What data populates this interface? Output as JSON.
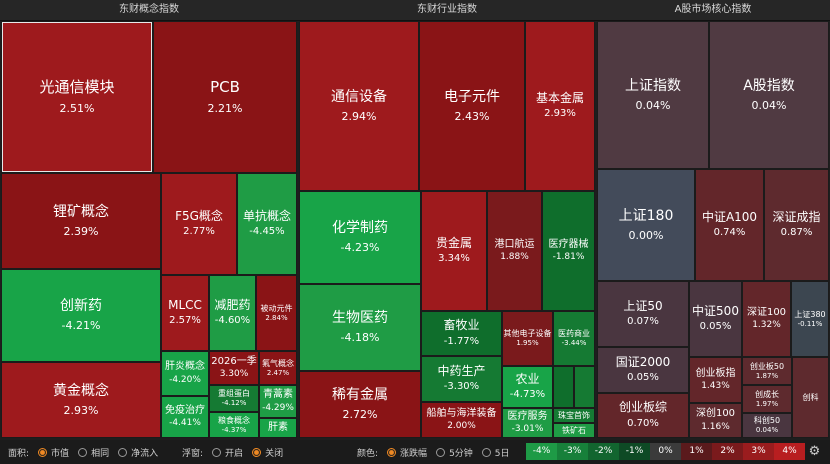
{
  "panels": {
    "concept": {
      "title": "东财概念指数",
      "tiles": [
        {
          "name": "光通信模块",
          "pct": "2.51%"
        },
        {
          "name": "PCB",
          "pct": "2.21%"
        },
        {
          "name": "锂矿概念",
          "pct": "2.39%"
        },
        {
          "name": "F5G概念",
          "pct": "2.77%"
        },
        {
          "name": "单抗概念",
          "pct": "-4.45%"
        },
        {
          "name": "创新药",
          "pct": "-4.21%"
        },
        {
          "name": "MLCC",
          "pct": "2.57%"
        },
        {
          "name": "减肥药",
          "pct": "-4.60%"
        },
        {
          "name": "被动元件",
          "pct": "2.84%"
        },
        {
          "name": "黄金概念",
          "pct": "2.93%"
        },
        {
          "name": "肝炎概念",
          "pct": "-4.20%"
        },
        {
          "name": "2026一季",
          "pct": "3.30%"
        },
        {
          "name": "氟气概念",
          "pct": "2.47%"
        },
        {
          "name": "免疫治疗",
          "pct": "-4.41%"
        },
        {
          "name": "重组蛋白",
          "pct": "-4.12%"
        },
        {
          "name": "青蒿素",
          "pct": "-4.29%"
        },
        {
          "name": "粮食概念",
          "pct": "-4.37%"
        },
        {
          "name": "肝素",
          "pct": ""
        }
      ]
    },
    "industry": {
      "title": "东财行业指数",
      "tiles": [
        {
          "name": "通信设备",
          "pct": "2.94%"
        },
        {
          "name": "电子元件",
          "pct": "2.43%"
        },
        {
          "name": "基本金属",
          "pct": "2.93%"
        },
        {
          "name": "化学制药",
          "pct": "-4.23%"
        },
        {
          "name": "贵金属",
          "pct": "3.34%"
        },
        {
          "name": "港口航运",
          "pct": "1.88%"
        },
        {
          "name": "医疗器械",
          "pct": "-1.81%"
        },
        {
          "name": "生物医药",
          "pct": "-4.18%"
        },
        {
          "name": "畜牧业",
          "pct": "-1.77%"
        },
        {
          "name": "其他电子设备",
          "pct": "1.95%"
        },
        {
          "name": "医药商业",
          "pct": "-3.44%"
        },
        {
          "name": "中药生产",
          "pct": "-3.30%"
        },
        {
          "name": "农业",
          "pct": "-4.73%"
        },
        {
          "name": "稀有金属",
          "pct": "2.72%"
        },
        {
          "name": "船舶与海洋装备",
          "pct": "2.00%"
        },
        {
          "name": "医疗服务",
          "pct": "-3.01%"
        },
        {
          "name": "珠宝首饰",
          "pct": ""
        },
        {
          "name": "铁矿石",
          "pct": ""
        }
      ]
    },
    "index": {
      "title": "A股市场核心指数",
      "tiles": [
        {
          "name": "上证指数",
          "pct": "0.04%"
        },
        {
          "name": "A股指数",
          "pct": "0.04%"
        },
        {
          "name": "上证180",
          "pct": "0.00%"
        },
        {
          "name": "中证A100",
          "pct": "0.74%"
        },
        {
          "name": "深证成指",
          "pct": "0.87%"
        },
        {
          "name": "上证50",
          "pct": "0.07%"
        },
        {
          "name": "中证500",
          "pct": "0.05%"
        },
        {
          "name": "深证100",
          "pct": "1.32%"
        },
        {
          "name": "上证380",
          "pct": "-0.11%"
        },
        {
          "name": "国证2000",
          "pct": "0.05%"
        },
        {
          "name": "创业板指",
          "pct": "1.43%"
        },
        {
          "name": "创业板50",
          "pct": "1.87%"
        },
        {
          "name": "创成长",
          "pct": "1.97%"
        },
        {
          "name": "科创50",
          "pct": "0.04%"
        },
        {
          "name": "创科",
          "pct": ""
        },
        {
          "name": "创业板综",
          "pct": "0.70%"
        },
        {
          "name": "深创100",
          "pct": "1.16%"
        }
      ]
    }
  },
  "footer": {
    "area_label": "面积:",
    "area_options": [
      "市值",
      "相同",
      "净流入"
    ],
    "float_label": "浮窗:",
    "float_options": [
      "开启",
      "关闭"
    ],
    "color_label": "颜色:",
    "color_options": [
      "涨跌幅",
      "5分钟",
      "5日"
    ],
    "legend": [
      {
        "label": "-4%",
        "color": "#1e9a46"
      },
      {
        "label": "-3%",
        "color": "#17803a"
      },
      {
        "label": "-2%",
        "color": "#12652f"
      },
      {
        "label": "-1%",
        "color": "#0e4a25"
      },
      {
        "label": "0%",
        "color": "#3b3b3b"
      },
      {
        "label": "1%",
        "color": "#5a1a1c"
      },
      {
        "label": "2%",
        "color": "#7a1a1c"
      },
      {
        "label": "3%",
        "color": "#9a1c1e"
      },
      {
        "label": "4%",
        "color": "#b81e20"
      }
    ]
  }
}
